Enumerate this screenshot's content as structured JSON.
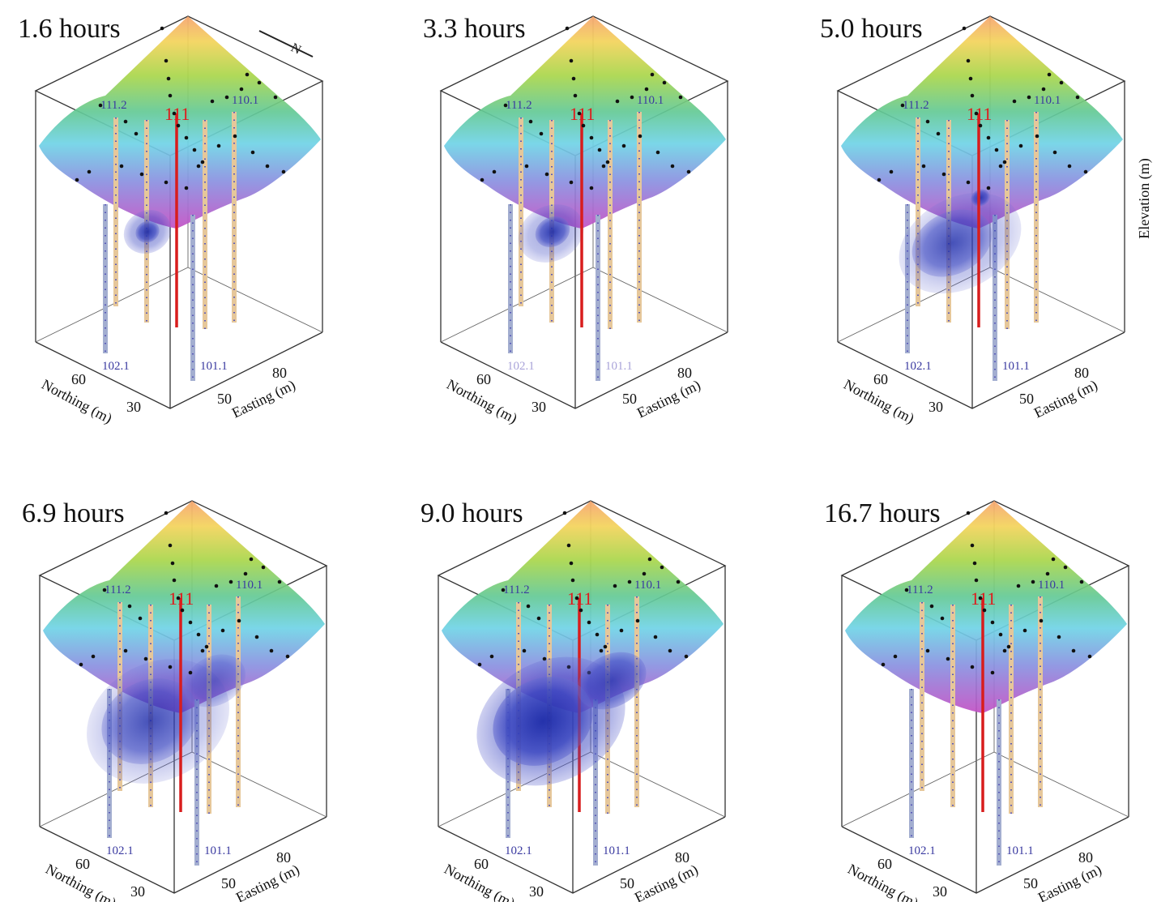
{
  "figure": {
    "vertical_axis_label": "Elevation (m)",
    "north_arrow_label": "N",
    "colors": {
      "surface_top": "#f4a870",
      "surface_mid": "#a8d94a",
      "surface_low": "#6fd3e6",
      "surface_bottom": "#b048c8",
      "plume": "#2a36b8",
      "injection_well": "#d81d1d",
      "well_tan": "#e6c79a",
      "well_grey": "#9aa6c9"
    },
    "panels": [
      {
        "time_label": "1.6 hours",
        "plume_level": 1,
        "well_labels": [
          "111.2",
          "111",
          "110.1",
          "102.1",
          "101.1"
        ],
        "labels_faded": false,
        "northing_label": "Northing (m)",
        "northing_ticks": [
          "60",
          "30"
        ],
        "easting_label": "Easting (m)",
        "easting_ticks": [
          "50",
          "80"
        ]
      },
      {
        "time_label": "3.3 hours",
        "plume_level": 2,
        "well_labels": [
          "111.2",
          "111",
          "110.1",
          "102.1",
          "101.1"
        ],
        "labels_faded": true,
        "northing_label": "Northing (m)",
        "northing_ticks": [
          "60",
          "30"
        ],
        "easting_label": "Easting (m)",
        "easting_ticks": [
          "50",
          "80"
        ]
      },
      {
        "time_label": "5.0 hours",
        "plume_level": 3,
        "well_labels": [
          "111.2",
          "111",
          "110.1",
          "102.1",
          "101.1"
        ],
        "labels_faded": false,
        "northing_label": "Northing (m)",
        "northing_ticks": [
          "60",
          "30"
        ],
        "easting_label": "Easting (m)",
        "easting_ticks": [
          "50",
          "80"
        ]
      },
      {
        "time_label": "6.9 hours",
        "plume_level": 4,
        "well_labels": [
          "111.2",
          "111",
          "110.1",
          "102.1",
          "101.1"
        ],
        "labels_faded": false,
        "northing_label": "Northing (m)",
        "northing_ticks": [
          "60",
          "30"
        ],
        "easting_label": "Easting (m)",
        "easting_ticks": [
          "50",
          "80"
        ]
      },
      {
        "time_label": "9.0 hours",
        "plume_level": 5,
        "well_labels": [
          "111.2",
          "111",
          "110.1",
          "102.1",
          "101.1"
        ],
        "labels_faded": false,
        "northing_label": "Northing (m)",
        "northing_ticks": [
          "60",
          "30"
        ],
        "easting_label": "Easting (m)",
        "easting_ticks": [
          "50",
          "80"
        ]
      },
      {
        "time_label": "16.7 hours",
        "plume_level": 5,
        "well_labels": [
          "111.2",
          "111",
          "110.1",
          "102.1",
          "101.1"
        ],
        "labels_faded": false,
        "northing_label": "Northing (m)",
        "northing_ticks": [
          "60",
          "30"
        ],
        "easting_label": "Easting (m)",
        "easting_ticks": [
          "50",
          "80"
        ]
      }
    ]
  }
}
